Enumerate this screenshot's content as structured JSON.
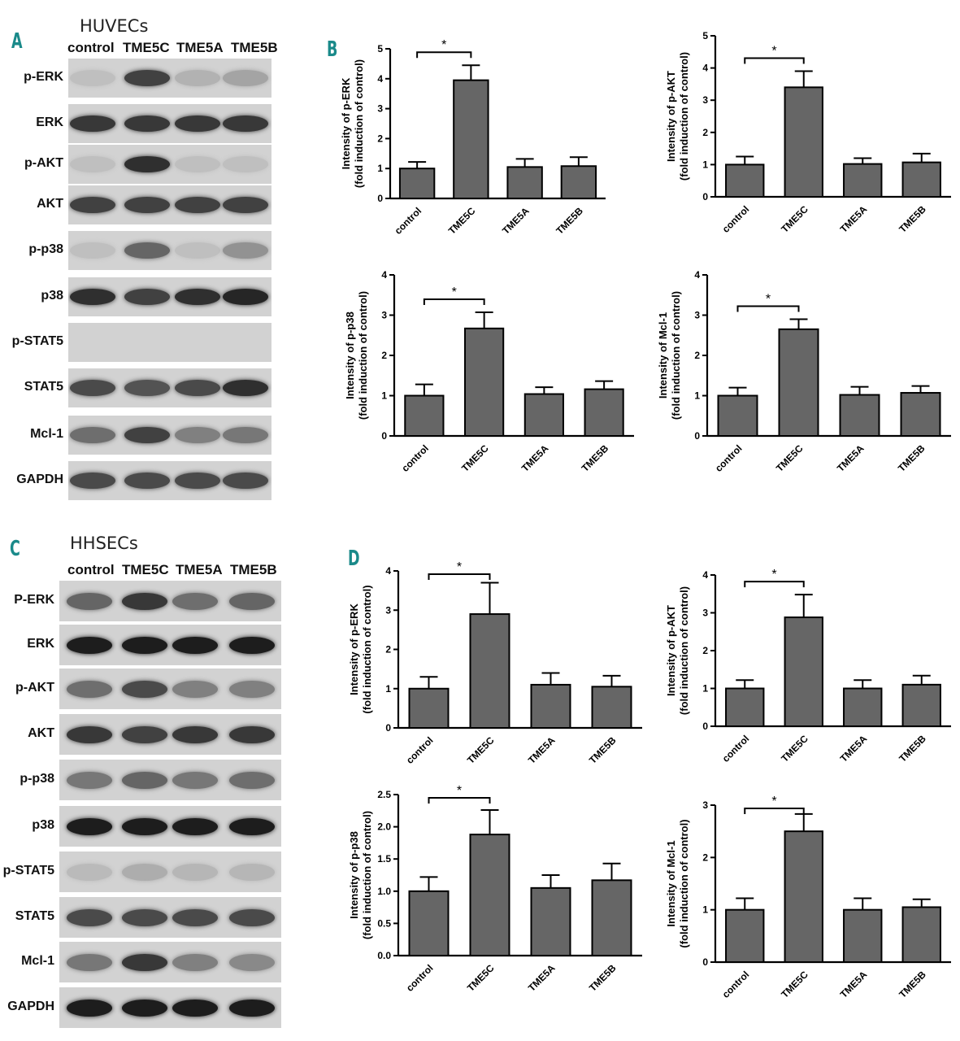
{
  "figure": {
    "panels": {
      "A": {
        "letter": "A",
        "cell_line": "HUVECs",
        "lanes": [
          "control",
          "TME5C",
          "TME5A",
          "TME5B"
        ]
      },
      "B": {
        "letter": "B"
      },
      "C": {
        "letter": "C",
        "cell_line": "HHSECs",
        "lanes": [
          "control",
          "TME5C",
          "TME5A",
          "TME5B"
        ]
      },
      "D": {
        "letter": "D"
      }
    },
    "blots_A": [
      {
        "label": "p-ERK",
        "intensity": [
          0.05,
          0.75,
          0.12,
          0.2
        ]
      },
      {
        "label": "ERK",
        "intensity": [
          0.8,
          0.8,
          0.8,
          0.8
        ]
      },
      {
        "label": "p-AKT",
        "intensity": [
          0.05,
          0.85,
          0.05,
          0.05
        ]
      },
      {
        "label": "AKT",
        "intensity": [
          0.75,
          0.75,
          0.75,
          0.75
        ]
      },
      {
        "label": "p-p38",
        "intensity": [
          0.05,
          0.55,
          0.05,
          0.3
        ]
      },
      {
        "label": "p38",
        "intensity": [
          0.85,
          0.75,
          0.85,
          0.9
        ]
      },
      {
        "label": "p-STAT5",
        "intensity": [
          0.0,
          0.0,
          0.0,
          0.0
        ]
      },
      {
        "label": "STAT5",
        "intensity": [
          0.7,
          0.65,
          0.7,
          0.85
        ]
      },
      {
        "label": "Mcl-1",
        "intensity": [
          0.5,
          0.75,
          0.4,
          0.45
        ]
      },
      {
        "label": "GAPDH",
        "intensity": [
          0.7,
          0.7,
          0.7,
          0.7
        ]
      }
    ],
    "blots_C": [
      {
        "label": "P-ERK",
        "intensity": [
          0.55,
          0.8,
          0.5,
          0.55
        ]
      },
      {
        "label": "ERK",
        "intensity": [
          0.95,
          0.95,
          0.95,
          0.95
        ]
      },
      {
        "label": "p-AKT",
        "intensity": [
          0.5,
          0.7,
          0.4,
          0.4
        ]
      },
      {
        "label": "AKT",
        "intensity": [
          0.8,
          0.75,
          0.8,
          0.8
        ]
      },
      {
        "label": "p-p38",
        "intensity": [
          0.45,
          0.55,
          0.45,
          0.5
        ]
      },
      {
        "label": "p38",
        "intensity": [
          0.95,
          0.95,
          0.95,
          0.95
        ]
      },
      {
        "label": "p-STAT5",
        "intensity": [
          0.08,
          0.15,
          0.1,
          0.1
        ]
      },
      {
        "label": "STAT5",
        "intensity": [
          0.7,
          0.7,
          0.7,
          0.7
        ]
      },
      {
        "label": "Mcl-1",
        "intensity": [
          0.45,
          0.8,
          0.4,
          0.35
        ]
      },
      {
        "label": "GAPDH",
        "intensity": [
          0.95,
          0.95,
          0.95,
          0.95
        ]
      }
    ]
  },
  "chart_data": [
    {
      "id": "B1",
      "type": "bar",
      "categories": [
        "control",
        "TME5C",
        "TME5A",
        "TME5B"
      ],
      "values": [
        1.0,
        3.95,
        1.05,
        1.08
      ],
      "errors": [
        0.22,
        0.5,
        0.27,
        0.3
      ],
      "ylabel": [
        "Intensity of p-ERK",
        "(fold induction of control)"
      ],
      "ylim": [
        0,
        5
      ],
      "yticks": [
        "0",
        "1",
        "2",
        "3",
        "4",
        "5"
      ],
      "sig": "*"
    },
    {
      "id": "B2",
      "type": "bar",
      "categories": [
        "control",
        "TME5C",
        "TME5A",
        "TME5B"
      ],
      "values": [
        1.0,
        3.4,
        1.02,
        1.07
      ],
      "errors": [
        0.25,
        0.5,
        0.18,
        0.27
      ],
      "ylabel": [
        "Intensity of p-AKT",
        "(fold induction of control)"
      ],
      "ylim": [
        0,
        5
      ],
      "yticks": [
        "0",
        "1",
        "2",
        "3",
        "4",
        "5"
      ],
      "sig": "*"
    },
    {
      "id": "B3",
      "type": "bar",
      "categories": [
        "control",
        "TME5C",
        "TME5A",
        "TME5B"
      ],
      "values": [
        1.0,
        2.67,
        1.04,
        1.16
      ],
      "errors": [
        0.28,
        0.4,
        0.17,
        0.2
      ],
      "ylabel": [
        "Intensity of p-p38",
        "(fold induction of control)"
      ],
      "ylim": [
        0,
        4
      ],
      "yticks": [
        "0",
        "1",
        "2",
        "3",
        "4"
      ],
      "sig": "*"
    },
    {
      "id": "B4",
      "type": "bar",
      "categories": [
        "control",
        "TME5C",
        "TME5A",
        "TME5B"
      ],
      "values": [
        1.0,
        2.65,
        1.02,
        1.07
      ],
      "errors": [
        0.2,
        0.25,
        0.2,
        0.17
      ],
      "ylabel": [
        "Intensity of Mcl-1",
        "(fold induction of control)"
      ],
      "ylim": [
        0,
        4
      ],
      "yticks": [
        "0",
        "1",
        "2",
        "3",
        "4"
      ],
      "sig": "*"
    },
    {
      "id": "D1",
      "type": "bar",
      "categories": [
        "control",
        "TME5C",
        "TME5A",
        "TME5B"
      ],
      "values": [
        1.0,
        2.9,
        1.1,
        1.05
      ],
      "errors": [
        0.3,
        0.8,
        0.3,
        0.28
      ],
      "ylabel": [
        "Intensity of p-ERK",
        "(fold induction of control)"
      ],
      "ylim": [
        0,
        4
      ],
      "yticks": [
        "0",
        "1",
        "2",
        "3",
        "4"
      ],
      "sig": "*"
    },
    {
      "id": "D2",
      "type": "bar",
      "categories": [
        "control",
        "TME5C",
        "TME5A",
        "TME5B"
      ],
      "values": [
        1.0,
        2.88,
        1.0,
        1.1
      ],
      "errors": [
        0.22,
        0.6,
        0.22,
        0.24
      ],
      "ylabel": [
        "Intensity of p-AKT",
        "(fold induction of control)"
      ],
      "ylim": [
        0,
        4
      ],
      "yticks": [
        "0",
        "1",
        "2",
        "3",
        "4"
      ],
      "sig": "*"
    },
    {
      "id": "D3",
      "type": "bar",
      "categories": [
        "control",
        "TME5C",
        "TME5A",
        "TME5B"
      ],
      "values": [
        1.0,
        1.88,
        1.05,
        1.17
      ],
      "errors": [
        0.22,
        0.38,
        0.2,
        0.26
      ],
      "ylabel": [
        "Intensity of p-p38",
        "(fold induction of control)"
      ],
      "ylim": [
        0,
        2.5
      ],
      "yticks": [
        "0.0",
        "0.5",
        "1.0",
        "1.5",
        "2.0",
        "2.5"
      ],
      "sig": "*"
    },
    {
      "id": "D4",
      "type": "bar",
      "categories": [
        "control",
        "TME5C",
        "TME5A",
        "TME5B"
      ],
      "values": [
        1.0,
        2.5,
        1.0,
        1.05
      ],
      "errors": [
        0.22,
        0.33,
        0.22,
        0.15
      ],
      "ylabel": [
        "Intensity of Mcl-1",
        "(fold induction of control)"
      ],
      "ylim": [
        0,
        3
      ],
      "yticks": [
        "0",
        "1",
        "2",
        "3"
      ],
      "sig": "*"
    }
  ]
}
